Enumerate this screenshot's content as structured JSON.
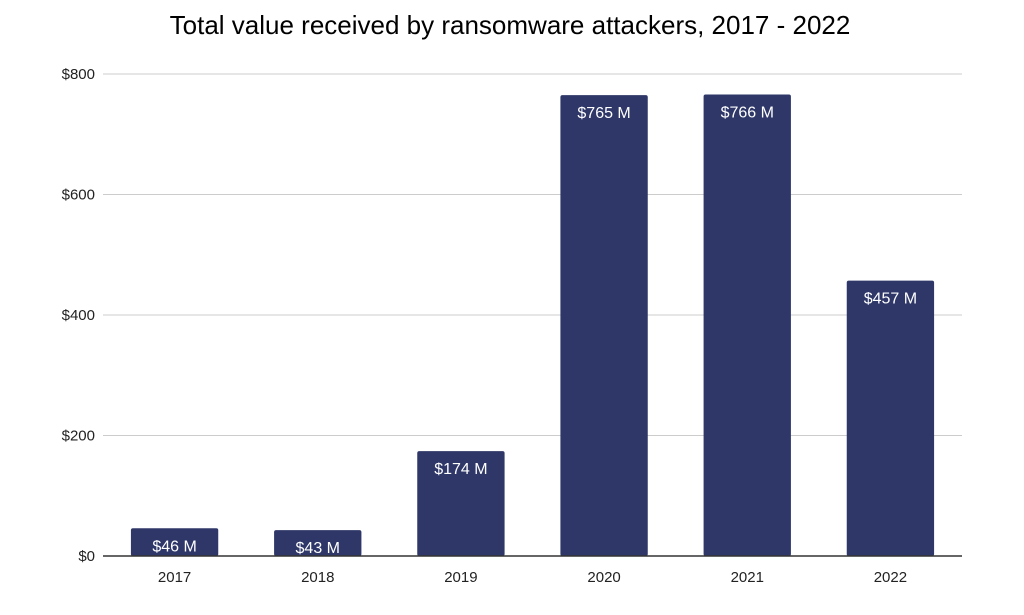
{
  "chart_data": {
    "type": "bar",
    "title": "Total value received by ransomware attackers, 2017 - 2022",
    "xlabel": "",
    "ylabel": "",
    "categories": [
      "2017",
      "2018",
      "2019",
      "2020",
      "2021",
      "2022"
    ],
    "values": [
      46,
      43,
      174,
      765,
      766,
      457
    ],
    "data_labels": [
      "$46 M",
      "$43 M",
      "$174 M",
      "$765 M",
      "$766 M",
      "$457 M"
    ],
    "ylim": [
      0,
      800
    ],
    "yticks": [
      0,
      200,
      400,
      600,
      800
    ],
    "ytick_labels": [
      "$0",
      "$200",
      "$400",
      "$600",
      "$800"
    ],
    "grid": true,
    "legend": "none",
    "colors": {
      "bar": "#2e3768",
      "grid": "#cccccc",
      "axis": "#333333",
      "label": "#ffffff"
    }
  }
}
